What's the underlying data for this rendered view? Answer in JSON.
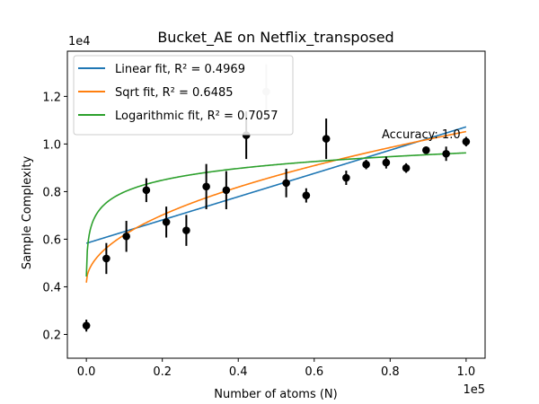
{
  "chart_data": {
    "type": "scatter",
    "title": "Bucket_AE on Netflix_transposed",
    "xlabel": "Number of atoms (N)",
    "ylabel": "Sample Complexity",
    "x_multiplier_label": "1e5",
    "y_multiplier_label": "1e4",
    "xlim": [
      -0.05,
      1.05
    ],
    "ylim": [
      0.1,
      1.39
    ],
    "x_ticks": [
      0.0,
      0.2,
      0.4,
      0.6,
      0.8,
      1.0
    ],
    "x_tick_labels": [
      "0.0",
      "0.2",
      "0.4",
      "0.6",
      "0.8",
      "1.0"
    ],
    "y_ticks": [
      0.2,
      0.4,
      0.6,
      0.8,
      1.0,
      1.2
    ],
    "y_tick_labels": [
      "0.2",
      "0.4",
      "0.6",
      "0.8",
      "1.0",
      "1.2"
    ],
    "grid": false,
    "legend_position": "upper-left",
    "annotation": "Accuracy: 1.0",
    "points": [
      {
        "x": 0.0,
        "y": 0.237,
        "err": 0.025
      },
      {
        "x": 0.0526,
        "y": 0.519,
        "err": 0.065
      },
      {
        "x": 0.1053,
        "y": 0.612,
        "err": 0.065
      },
      {
        "x": 0.1579,
        "y": 0.806,
        "err": 0.05
      },
      {
        "x": 0.2105,
        "y": 0.672,
        "err": 0.065
      },
      {
        "x": 0.2632,
        "y": 0.637,
        "err": 0.065
      },
      {
        "x": 0.3158,
        "y": 0.821,
        "err": 0.095
      },
      {
        "x": 0.3684,
        "y": 0.806,
        "err": 0.08
      },
      {
        "x": 0.4211,
        "y": 1.037,
        "err": 0.1
      },
      {
        "x": 0.4737,
        "y": 1.22,
        "err": 0.115,
        "faded": true
      },
      {
        "x": 0.5263,
        "y": 0.836,
        "err": 0.06
      },
      {
        "x": 0.5789,
        "y": 0.784,
        "err": 0.03
      },
      {
        "x": 0.6316,
        "y": 1.022,
        "err": 0.085
      },
      {
        "x": 0.6842,
        "y": 0.858,
        "err": 0.03
      },
      {
        "x": 0.7368,
        "y": 0.914,
        "err": 0.02
      },
      {
        "x": 0.7895,
        "y": 0.922,
        "err": 0.025
      },
      {
        "x": 0.8421,
        "y": 0.899,
        "err": 0.02
      },
      {
        "x": 0.8947,
        "y": 0.974,
        "err": 0.015
      },
      {
        "x": 0.9474,
        "y": 0.959,
        "err": 0.03
      },
      {
        "x": 1.0,
        "y": 1.01,
        "err": 0.02
      }
    ],
    "series": [
      {
        "name": "Linear fit,",
        "r2_label": "R² = 0.4969",
        "color": "#1f77b4",
        "model": "linear",
        "params": {
          "a": 0.5829,
          "b": 0.4891
        }
      },
      {
        "name": "Sqrt fit,",
        "r2_label": "R² = 0.6485",
        "color": "#ff7f0e",
        "model": "sqrt",
        "params": {
          "a": 0.4176,
          "b": 0.6346
        }
      },
      {
        "name": "Logarithmic fit,",
        "r2_label": "R² = 0.7057",
        "color": "#2ca02c",
        "model": "log",
        "params": {
          "a": 0.9627,
          "b": 0.0715,
          "x0": 0.0007
        }
      }
    ]
  }
}
